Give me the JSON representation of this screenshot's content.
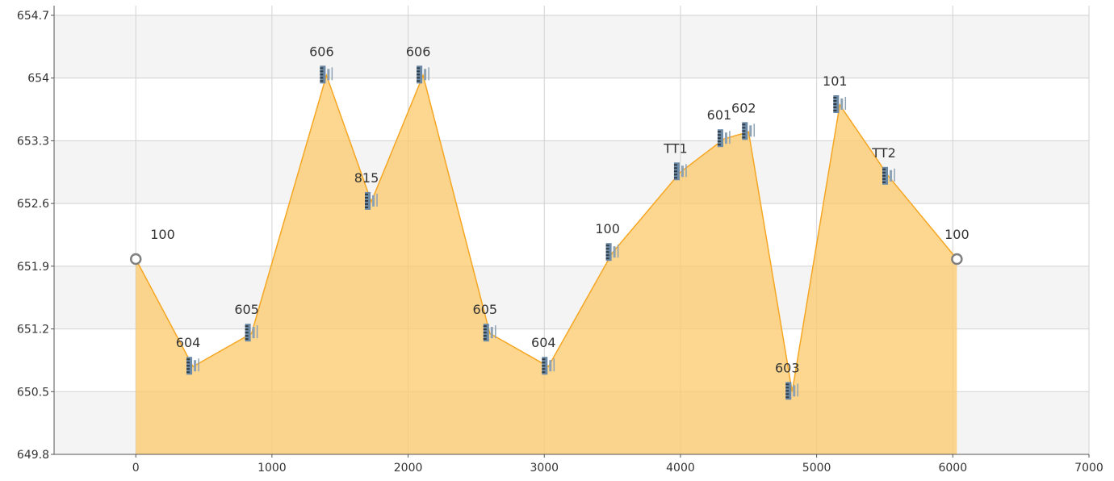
{
  "chart_data": {
    "type": "area",
    "title": "",
    "xlabel": "",
    "ylabel": "",
    "xlim": [
      -600,
      7000
    ],
    "ylim": [
      649.8,
      654.7
    ],
    "x_ticks": [
      0,
      1000,
      2000,
      3000,
      4000,
      5000,
      6000,
      7000
    ],
    "y_ticks": [
      649.8,
      650.5,
      651.2,
      651.9,
      652.6,
      653.3,
      654,
      654.7
    ],
    "y_tick_labels": [
      "649.8",
      "650.5",
      "651.2",
      "651.9",
      "652.6",
      "653.3",
      "654",
      "654.7"
    ],
    "grid": true,
    "colors": {
      "fill": "#fcc96b",
      "line": "#f5a623",
      "band": "#f4f4f4",
      "grid": "#d2d2d2",
      "marker": "#808080"
    },
    "points": [
      {
        "x": 0,
        "y": 651.98,
        "label": "100",
        "marker": "circle"
      },
      {
        "x": 420,
        "y": 650.78,
        "label": "604",
        "marker": "level-icon"
      },
      {
        "x": 850,
        "y": 651.15,
        "label": "605",
        "marker": "level-icon"
      },
      {
        "x": 1400,
        "y": 654.03,
        "label": "606",
        "marker": "level-icon"
      },
      {
        "x": 1730,
        "y": 652.62,
        "label": "815",
        "marker": "level-icon"
      },
      {
        "x": 2110,
        "y": 654.03,
        "label": "606",
        "marker": "level-icon"
      },
      {
        "x": 2600,
        "y": 651.15,
        "label": "605",
        "marker": "level-icon"
      },
      {
        "x": 3030,
        "y": 650.78,
        "label": "604",
        "marker": "level-icon"
      },
      {
        "x": 3500,
        "y": 652.05,
        "label": "100",
        "marker": "level-icon"
      },
      {
        "x": 4000,
        "y": 652.95,
        "label": "TT1",
        "marker": "level-icon"
      },
      {
        "x": 4320,
        "y": 653.32,
        "label": "601",
        "marker": "level-icon"
      },
      {
        "x": 4500,
        "y": 653.4,
        "label": "602",
        "marker": "level-icon"
      },
      {
        "x": 4820,
        "y": 650.5,
        "label": "603",
        "marker": "level-icon"
      },
      {
        "x": 5170,
        "y": 653.7,
        "label": "101",
        "marker": "level-icon"
      },
      {
        "x": 5530,
        "y": 652.9,
        "label": "TT2",
        "marker": "level-icon"
      },
      {
        "x": 6030,
        "y": 651.98,
        "label": "100",
        "marker": "circle"
      }
    ]
  }
}
